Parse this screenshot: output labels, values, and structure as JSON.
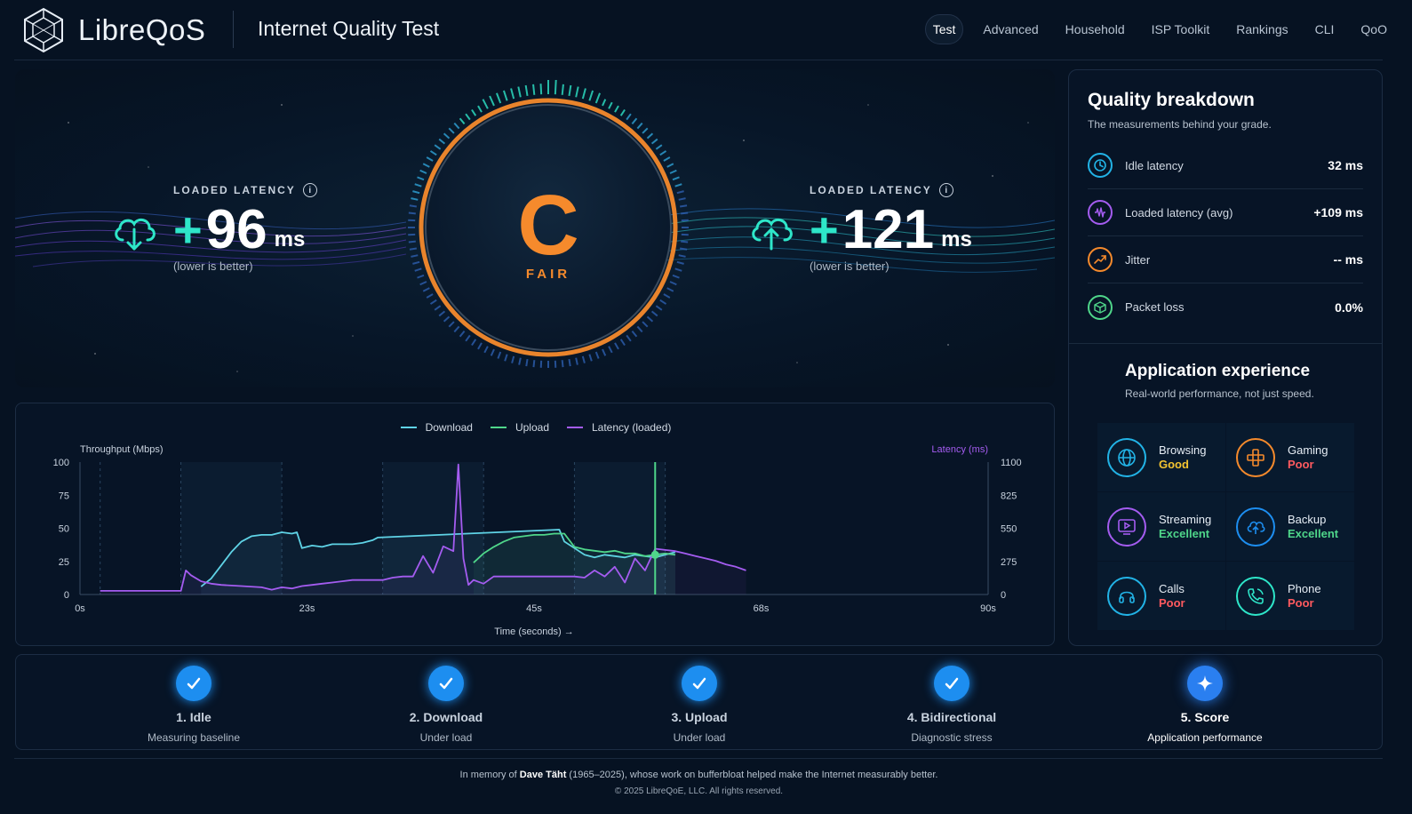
{
  "header": {
    "brand": "LibreQoS",
    "title": "Internet Quality Test",
    "nav": [
      "Test",
      "Advanced",
      "Household",
      "ISP Toolkit",
      "Rankings",
      "CLI",
      "QoO"
    ]
  },
  "hero": {
    "download": {
      "label": "LOADED LATENCY",
      "plus": "+",
      "value": "96",
      "unit": "ms",
      "sub": "(lower is better)",
      "icon": "cloud-download-icon"
    },
    "upload": {
      "label": "LOADED LATENCY",
      "plus": "+",
      "value": "121",
      "unit": "ms",
      "sub": "(lower is better)",
      "icon": "cloud-upload-icon"
    },
    "grade": {
      "letter": "C",
      "label": "FAIR",
      "color": "#f58a2c"
    }
  },
  "chart_data": {
    "type": "line",
    "legend": [
      "Download",
      "Upload",
      "Latency (loaded)"
    ],
    "colors": {
      "download": "#5fd3e6",
      "upload": "#4fd68a",
      "latency": "#a45cf0"
    },
    "ylabel_left": "Throughput (Mbps)",
    "ylabel_right": "Latency (ms)",
    "xlabel": "Time (seconds) →",
    "x_ticks": [
      "0s",
      "23s",
      "45s",
      "68s",
      "90s"
    ],
    "y_left_ticks": [
      "100",
      "75",
      "50",
      "25",
      "0"
    ],
    "y_right_ticks": [
      "1100",
      "825",
      "550",
      "275",
      "0"
    ],
    "ylim_left": [
      0,
      100
    ],
    "ylim_right": [
      0,
      1100
    ],
    "xlim": [
      0,
      90
    ],
    "series": [
      {
        "name": "Download",
        "axis": "left",
        "x": [
          12,
          13,
          14,
          15,
          16,
          17,
          18,
          19,
          20,
          21,
          21.5,
          22,
          23,
          24,
          25,
          26,
          27,
          28,
          29,
          29.5,
          47.5,
          48,
          49,
          50,
          51,
          52,
          53,
          54,
          55,
          56,
          57,
          58,
          59
        ],
        "y": [
          6,
          12,
          22,
          32,
          40,
          44,
          45,
          45,
          47,
          46,
          47,
          35,
          37,
          36,
          38,
          38,
          38,
          39,
          41,
          43,
          49,
          40,
          35,
          30,
          28,
          30,
          29,
          28,
          30,
          29,
          28,
          30,
          32
        ]
      },
      {
        "name": "Upload",
        "axis": "left",
        "x": [
          39,
          40,
          41,
          42,
          43,
          44,
          45,
          46,
          47,
          48,
          49,
          50,
          51,
          52,
          53,
          54,
          55,
          56,
          57,
          58,
          59
        ],
        "y": [
          24,
          31,
          36,
          40,
          43,
          44,
          45,
          45,
          46,
          46,
          36,
          34,
          33,
          32,
          33,
          31,
          31,
          29,
          30,
          31,
          30
        ]
      },
      {
        "name": "Latency (loaded)",
        "axis": "right",
        "x": [
          2,
          5,
          8,
          10,
          10.5,
          11,
          12,
          13,
          14,
          16,
          18,
          19,
          20,
          21,
          22,
          23,
          24,
          25,
          26,
          27,
          28,
          29,
          30,
          31,
          32,
          33,
          34,
          35,
          36,
          37,
          37.5,
          38,
          38.5,
          39,
          40,
          41,
          42,
          43,
          44,
          45,
          46,
          47,
          48,
          49,
          50,
          51,
          52,
          53,
          54,
          55,
          56,
          57,
          58,
          59,
          60,
          61,
          62,
          63,
          64,
          65,
          66
        ],
        "y": [
          30,
          30,
          30,
          30,
          200,
          160,
          110,
          90,
          80,
          70,
          60,
          40,
          60,
          50,
          70,
          80,
          90,
          100,
          110,
          120,
          120,
          120,
          120,
          140,
          150,
          150,
          320,
          180,
          400,
          360,
          1080,
          300,
          80,
          120,
          90,
          150,
          150,
          150,
          150,
          150,
          150,
          150,
          150,
          150,
          140,
          200,
          150,
          230,
          100,
          300,
          200,
          380,
          370,
          360,
          340,
          320,
          300,
          280,
          250,
          230,
          200
        ]
      }
    ],
    "marker": {
      "x": 57,
      "color": "#4fd68a"
    }
  },
  "quality": {
    "title": "Quality breakdown",
    "subtitle": "The measurements behind your grade.",
    "rows": [
      {
        "label": "Idle latency",
        "value": "32 ms",
        "icon": "clock-icon",
        "color": "#22b3e6"
      },
      {
        "label": "Loaded latency (avg)",
        "value": "+109 ms",
        "icon": "waveform-icon",
        "color": "#a45cf0"
      },
      {
        "label": "Jitter",
        "value": "-- ms",
        "icon": "trend-icon",
        "color": "#f58a2c"
      },
      {
        "label": "Packet loss",
        "value": "0.0%",
        "icon": "package-icon",
        "color": "#4fd68a"
      }
    ]
  },
  "apps": {
    "title": "Application experience",
    "subtitle": "Real-world performance, not just speed.",
    "items": [
      {
        "name": "Browsing",
        "status": "Good",
        "status_color": "#f4c430",
        "icon": "globe-icon",
        "color": "#22b3e6"
      },
      {
        "name": "Gaming",
        "status": "Poor",
        "status_color": "#ff5a5f",
        "icon": "gamepad-icon",
        "color": "#f58a2c"
      },
      {
        "name": "Streaming",
        "status": "Excellent",
        "status_color": "#4fd68a",
        "icon": "play-icon",
        "color": "#a45cf0"
      },
      {
        "name": "Backup",
        "status": "Excellent",
        "status_color": "#4fd68a",
        "icon": "cloud-upload-icon",
        "color": "#1d8ef0"
      },
      {
        "name": "Calls",
        "status": "Poor",
        "status_color": "#ff5a5f",
        "icon": "headset-icon",
        "color": "#22b3e6"
      },
      {
        "name": "Phone",
        "status": "Poor",
        "status_color": "#ff5a5f",
        "icon": "phone-icon",
        "color": "#2ee6c9"
      }
    ]
  },
  "steps": [
    {
      "title": "1. Idle",
      "sub": "Measuring baseline",
      "icon": "check-icon"
    },
    {
      "title": "2. Download",
      "sub": "Under load",
      "icon": "check-icon"
    },
    {
      "title": "3. Upload",
      "sub": "Under load",
      "icon": "check-icon"
    },
    {
      "title": "4. Bidirectional",
      "sub": "Diagnostic stress",
      "icon": "check-icon"
    },
    {
      "title": "5. Score",
      "sub": "Application performance",
      "icon": "sparkle-icon"
    }
  ],
  "footer": {
    "memory_pre": "In memory of ",
    "memory_name": "Dave Täht",
    "memory_post": " (1965–2025), whose work on bufferbloat helped make the Internet measurably better.",
    "copyright": "© 2025 LibreQoE, LLC. All rights reserved."
  }
}
